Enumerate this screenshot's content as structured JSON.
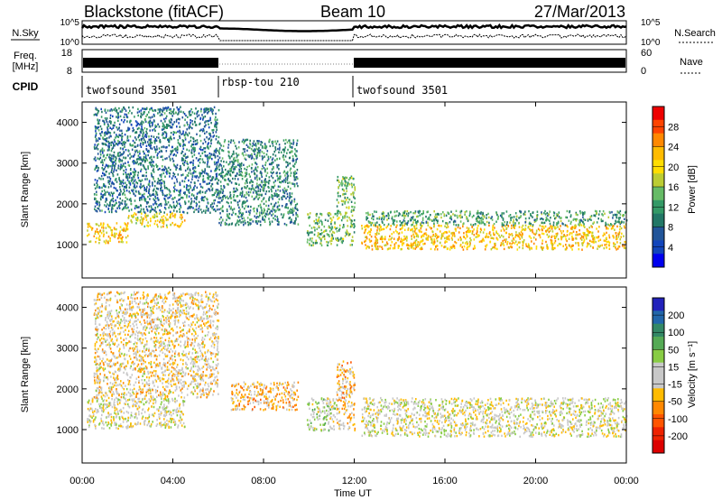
{
  "header": {
    "station": "Blackstone (fitACF)",
    "beam": "Beam 10",
    "date": "27/Mar/2013"
  },
  "noise_panel": {
    "left_label": "N.Sky",
    "right_label": "N.Search",
    "left_ticks": [
      "10^5",
      "10^0"
    ],
    "right_ticks": [
      "10^5",
      "10^0"
    ]
  },
  "freq_panel": {
    "left_label_1": "Freq.",
    "left_label_2": "[MHz]",
    "right_label": "Nave",
    "left_ticks": [
      "18",
      "8"
    ],
    "right_ticks": [
      "60",
      "0"
    ]
  },
  "cpid": {
    "label": "CPID",
    "segments": [
      {
        "name": "twofsound 3501",
        "start_hour": 0,
        "end_hour": 6
      },
      {
        "name": "rbsp-tou 210",
        "start_hour": 6,
        "end_hour": 12
      },
      {
        "name": "twofsound 3501",
        "start_hour": 12,
        "end_hour": 24
      }
    ]
  },
  "power_colorbar": {
    "label": "Power [dB]",
    "ticks": [
      "28",
      "24",
      "20",
      "16",
      "12",
      "8",
      "4"
    ],
    "colors": [
      "#ee0000",
      "#ff4400",
      "#ff8800",
      "#ffbb00",
      "#ffdd00",
      "#bbcc33",
      "#66bb66",
      "#339966",
      "#227766",
      "#225599",
      "#1144bb",
      "#0000ee"
    ]
  },
  "velocity_colorbar": {
    "label": "Velocity [m s⁻¹]",
    "ticks": [
      "200",
      "100",
      "50",
      "15",
      "-15",
      "-50",
      "-100",
      "-200"
    ],
    "colors": [
      "#2222bb",
      "#2266aa",
      "#338866",
      "#55aa55",
      "#88cc44",
      "#c8c8c8",
      "#c8c8c8",
      "#ffbb00",
      "#ff8800",
      "#ff5500",
      "#ee2200",
      "#dd0000"
    ]
  },
  "time_axis": {
    "ticks": [
      "00:00",
      "04:00",
      "08:00",
      "12:00",
      "16:00",
      "20:00",
      "00:00"
    ],
    "label": "Time UT"
  },
  "chart_data": {
    "type": "heatmap",
    "x_range_hours": [
      0,
      24
    ],
    "y_range_km": [
      180,
      4500
    ],
    "yticks": [
      "1000",
      "2000",
      "3000",
      "4000"
    ],
    "ylabel": "Slant Range [km]",
    "panels": [
      {
        "name": "Power",
        "scatter_bands": [
          {
            "t0": 0.2,
            "t1": 2.0,
            "r0": 1050,
            "r1": 1550,
            "value": 22
          },
          {
            "t0": 2.0,
            "t1": 4.5,
            "r0": 1450,
            "r1": 1800,
            "value": 20
          },
          {
            "t0": 12.3,
            "t1": 24,
            "r0": 900,
            "r1": 1500,
            "value": 22
          },
          {
            "t0": 12.3,
            "t1": 24,
            "r0": 1500,
            "r1": 1850,
            "value": 12
          },
          {
            "t0": 0.5,
            "t1": 6,
            "r0": 1800,
            "r1": 4400,
            "value": 8
          },
          {
            "t0": 6,
            "t1": 9.5,
            "r0": 1500,
            "r1": 3600,
            "value": 10
          },
          {
            "t0": 9.9,
            "t1": 11.2,
            "r0": 1000,
            "r1": 1800,
            "value": 14
          },
          {
            "t0": 11.2,
            "t1": 12,
            "r0": 1000,
            "r1": 2700,
            "value": 14
          }
        ]
      },
      {
        "name": "Velocity",
        "scatter_bands": [
          {
            "t0": 0.2,
            "t1": 4.5,
            "r0": 1050,
            "r1": 1800,
            "value": 0
          },
          {
            "t0": 12.3,
            "t1": 24,
            "r0": 850,
            "r1": 1800,
            "value": 0
          },
          {
            "t0": 0.5,
            "t1": 6,
            "r0": 1800,
            "r1": 4400,
            "value": -30
          },
          {
            "t0": 6.5,
            "t1": 9.5,
            "r0": 1500,
            "r1": 2200,
            "value": -60
          },
          {
            "t0": 9.9,
            "t1": 11.2,
            "r0": 1000,
            "r1": 1800,
            "value": 20
          },
          {
            "t0": 11.2,
            "t1": 12,
            "r0": 1000,
            "r1": 2700,
            "value": -60
          }
        ]
      }
    ]
  }
}
